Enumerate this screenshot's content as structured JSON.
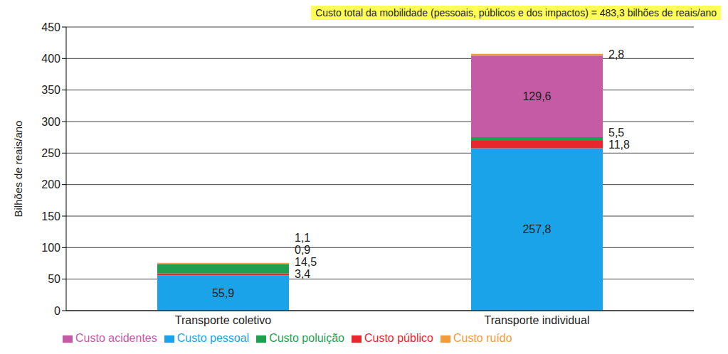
{
  "chart_data": {
    "type": "bar",
    "stacked": true,
    "annotation": "Custo total da mobilidade (pessoais, públicos e dos impactos) = 483,3 bilhões de reais/ano",
    "y_label": "Bilhões de reais/ano",
    "categories": [
      "Transporte coletivo",
      "Transporte individual"
    ],
    "series": [
      {
        "name": "Custo pessoal",
        "color": "#1aa3e8",
        "values": [
          55.9,
          257.8
        ],
        "value_labels": [
          "55,9",
          "257,8"
        ]
      },
      {
        "name": "Custo público",
        "color": "#e8262d",
        "values": [
          3.4,
          11.8
        ],
        "value_labels": [
          "3,4",
          "11,8"
        ]
      },
      {
        "name": "Custo poluição",
        "color": "#1fa050",
        "values": [
          14.5,
          5.5
        ],
        "value_labels": [
          "14,5",
          "5,5"
        ]
      },
      {
        "name": "Custo acidentes",
        "color": "#c55aa5",
        "values": [
          0.9,
          129.6
        ],
        "value_labels": [
          "0,9",
          "129,6"
        ]
      },
      {
        "name": "Custo ruído",
        "color": "#f39a3b",
        "values": [
          1.1,
          2.8
        ],
        "value_labels": [
          "1,1",
          "2,8"
        ]
      }
    ],
    "ylim": [
      0,
      450
    ],
    "yticks": [
      0,
      50,
      100,
      150,
      200,
      250,
      300,
      350,
      400,
      450
    ],
    "grid": true,
    "legend": "bottom",
    "data_labels": true
  }
}
